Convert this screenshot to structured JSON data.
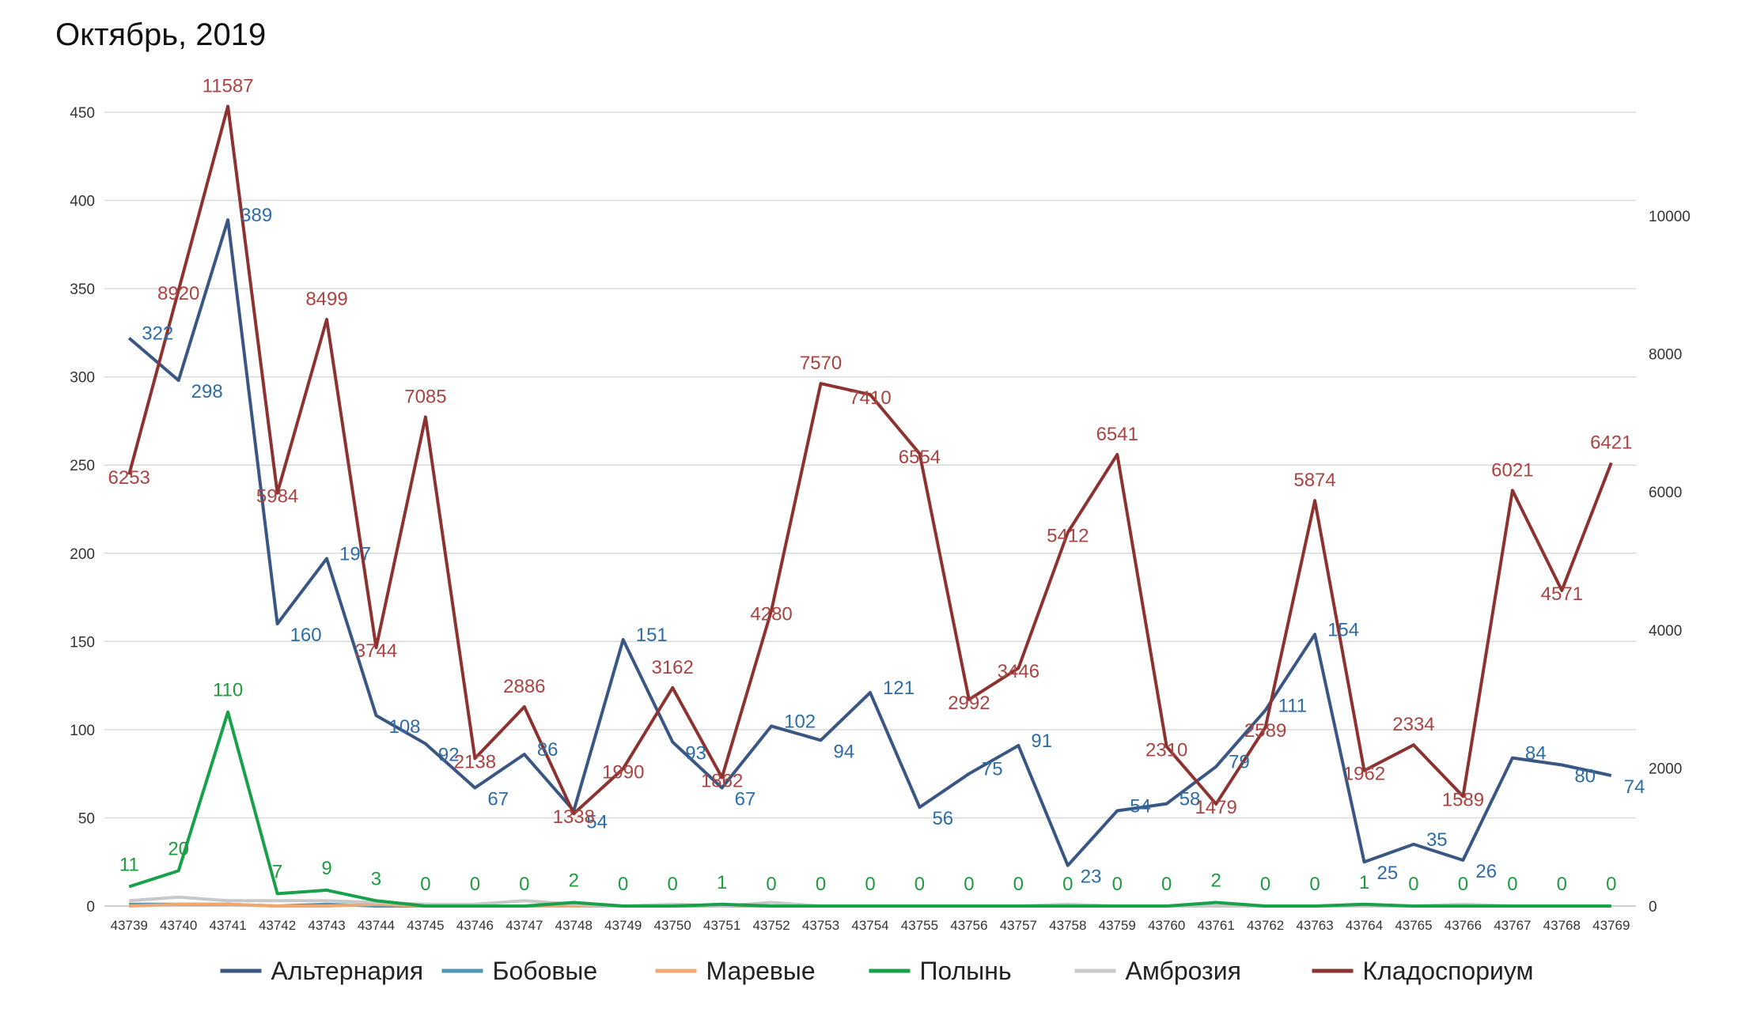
{
  "chart_data": {
    "type": "line",
    "title": "Октябрь, 2019",
    "categories": [
      "43739",
      "43740",
      "43741",
      "43742",
      "43743",
      "43744",
      "43745",
      "43746",
      "43747",
      "43748",
      "43749",
      "43750",
      "43751",
      "43752",
      "43753",
      "43754",
      "43755",
      "43756",
      "43757",
      "43758",
      "43759",
      "43760",
      "43761",
      "43762",
      "43763",
      "43764",
      "43765",
      "43766",
      "43767",
      "43768",
      "43769"
    ],
    "y_left": {
      "min": 0,
      "max": 450,
      "ticks": [
        0,
        50,
        100,
        150,
        200,
        250,
        300,
        350,
        400,
        450
      ]
    },
    "y_right": {
      "min": 0,
      "max": 11500,
      "ticks": [
        0,
        2000,
        4000,
        6000,
        8000,
        10000
      ]
    },
    "grid": true,
    "legend_position": "bottom",
    "series": [
      {
        "name": "Альтернария",
        "axis": "left",
        "color": "#3a5683",
        "label_color": "#2e6da4",
        "show_labels": true,
        "values": [
          322,
          298,
          389,
          160,
          197,
          108,
          92,
          67,
          86,
          54,
          151,
          93,
          67,
          102,
          94,
          121,
          56,
          75,
          91,
          23,
          54,
          58,
          79,
          111,
          154,
          25,
          35,
          26,
          84,
          80,
          74
        ]
      },
      {
        "name": "Бобовые",
        "axis": "left",
        "color": "#4f95b6",
        "show_labels": false,
        "values": [
          1,
          1,
          1,
          0,
          1,
          0,
          0,
          0,
          0,
          0,
          0,
          0,
          0,
          0,
          0,
          0,
          0,
          0,
          0,
          0,
          0,
          0,
          0,
          0,
          0,
          0,
          0,
          0,
          0,
          0,
          0
        ]
      },
      {
        "name": "Маревые",
        "axis": "left",
        "color": "#f0a870",
        "show_labels": false,
        "values": [
          0,
          1,
          1,
          0,
          0,
          1,
          0,
          0,
          0,
          0,
          0,
          0,
          0,
          0,
          0,
          0,
          0,
          0,
          0,
          0,
          0,
          0,
          0,
          0,
          0,
          0,
          0,
          0,
          0,
          0,
          0
        ]
      },
      {
        "name": "Полынь",
        "axis": "left",
        "color": "#18a04a",
        "label_color": "#1f9a3f",
        "show_labels": true,
        "values": [
          11,
          20,
          110,
          7,
          9,
          3,
          0,
          0,
          0,
          2,
          0,
          0,
          1,
          0,
          0,
          0,
          0,
          0,
          0,
          0,
          0,
          0,
          2,
          0,
          0,
          1,
          0,
          0,
          0,
          0,
          0
        ]
      },
      {
        "name": "Амброзия",
        "axis": "left",
        "color": "#c8c8c8",
        "show_labels": false,
        "values": [
          3,
          5,
          3,
          3,
          3,
          2,
          1,
          1,
          3,
          1,
          0,
          1,
          0,
          2,
          0,
          0,
          0,
          0,
          0,
          1,
          0,
          0,
          0,
          0,
          0,
          0,
          0,
          1,
          0,
          0,
          0
        ]
      },
      {
        "name": "Кладоспориум",
        "axis": "right",
        "color": "#8c3332",
        "label_color": "#a94442",
        "show_labels": true,
        "values": [
          6253,
          8920,
          11587,
          5984,
          8499,
          3744,
          7085,
          2138,
          2886,
          1338,
          1990,
          3162,
          1862,
          4280,
          7570,
          7410,
          6554,
          2992,
          3446,
          5412,
          6541,
          2310,
          1479,
          2589,
          5874,
          1962,
          2334,
          1589,
          6021,
          4571,
          6421
        ]
      }
    ]
  }
}
